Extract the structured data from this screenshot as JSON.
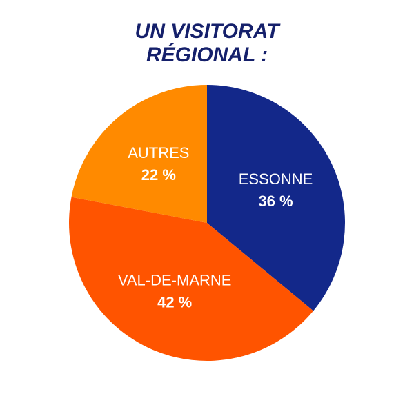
{
  "chart_data": {
    "type": "pie",
    "title": [
      "UN VISITORAT",
      "RÉGIONAL :"
    ],
    "categories": [
      "ESSONNE",
      "VAL-DE-MARNE",
      "AUTRES"
    ],
    "values": [
      36,
      42,
      22
    ],
    "value_labels": [
      "36 %",
      "42 %",
      "22 %"
    ],
    "colors": [
      "#13288a",
      "#ff5400",
      "#ff8a00"
    ]
  }
}
